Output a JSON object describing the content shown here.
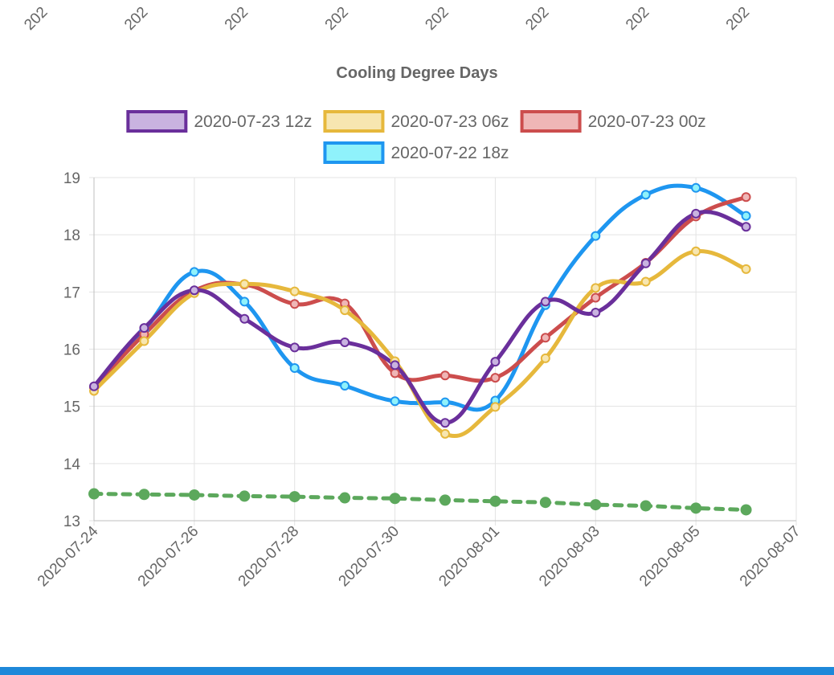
{
  "top_strip": {
    "cut_tick_labels": [
      "202",
      "202",
      "202",
      "202",
      "202",
      "202",
      "202",
      "202"
    ]
  },
  "chart_data": {
    "type": "line",
    "title": "Cooling Degree Days",
    "xlabel": "",
    "ylabel": "",
    "x_tick_labels": [
      "2020-07-24",
      "2020-07-26",
      "2020-07-28",
      "2020-07-30",
      "2020-08-01",
      "2020-08-03",
      "2020-08-05",
      "2020-08-07"
    ],
    "xlim": [
      "2020-07-24",
      "2020-08-07"
    ],
    "ylim": [
      13,
      19
    ],
    "y_ticks": [
      13,
      14,
      15,
      16,
      17,
      18,
      19
    ],
    "grid": true,
    "legend_position": "top",
    "x": [
      "2020-07-24",
      "2020-07-25",
      "2020-07-26",
      "2020-07-27",
      "2020-07-28",
      "2020-07-29",
      "2020-07-30",
      "2020-07-31",
      "2020-08-01",
      "2020-08-02",
      "2020-08-03",
      "2020-08-04",
      "2020-08-05",
      "2020-08-06"
    ],
    "series": [
      {
        "name": "2020-07-23 12z",
        "color": "#6a2f9b",
        "fill": "#c9b3e0",
        "values": [
          15.35,
          16.37,
          17.03,
          16.53,
          16.03,
          16.12,
          15.72,
          14.71,
          15.78,
          16.83,
          16.64,
          17.5,
          18.37,
          18.14
        ]
      },
      {
        "name": "2020-07-23 06z",
        "color": "#e6b83c",
        "fill": "#f7e6b0",
        "values": [
          15.27,
          16.14,
          16.98,
          17.14,
          17.01,
          16.68,
          15.79,
          14.52,
          14.99,
          15.84,
          17.07,
          17.18,
          17.71,
          17.4
        ]
      },
      {
        "name": "2020-07-23 00z",
        "color": "#cc4d4d",
        "fill": "#efb6b6",
        "values": [
          15.33,
          16.26,
          17.02,
          17.13,
          16.79,
          16.8,
          15.58,
          15.54,
          15.5,
          16.2,
          16.9,
          17.51,
          18.32,
          18.66
        ]
      },
      {
        "name": "2020-07-22 18z",
        "color": "#1e96f0",
        "fill": "#8ff2fb",
        "values": [
          15.34,
          16.33,
          17.35,
          16.83,
          15.67,
          15.36,
          15.09,
          15.07,
          15.1,
          16.77,
          17.98,
          18.7,
          18.82,
          18.33
        ]
      },
      {
        "color": "#5ca85c",
        "dashed": true,
        "values": [
          13.47,
          13.46,
          13.45,
          13.43,
          13.42,
          13.4,
          13.39,
          13.36,
          13.34,
          13.32,
          13.28,
          13.26,
          13.22,
          13.19
        ]
      }
    ]
  }
}
